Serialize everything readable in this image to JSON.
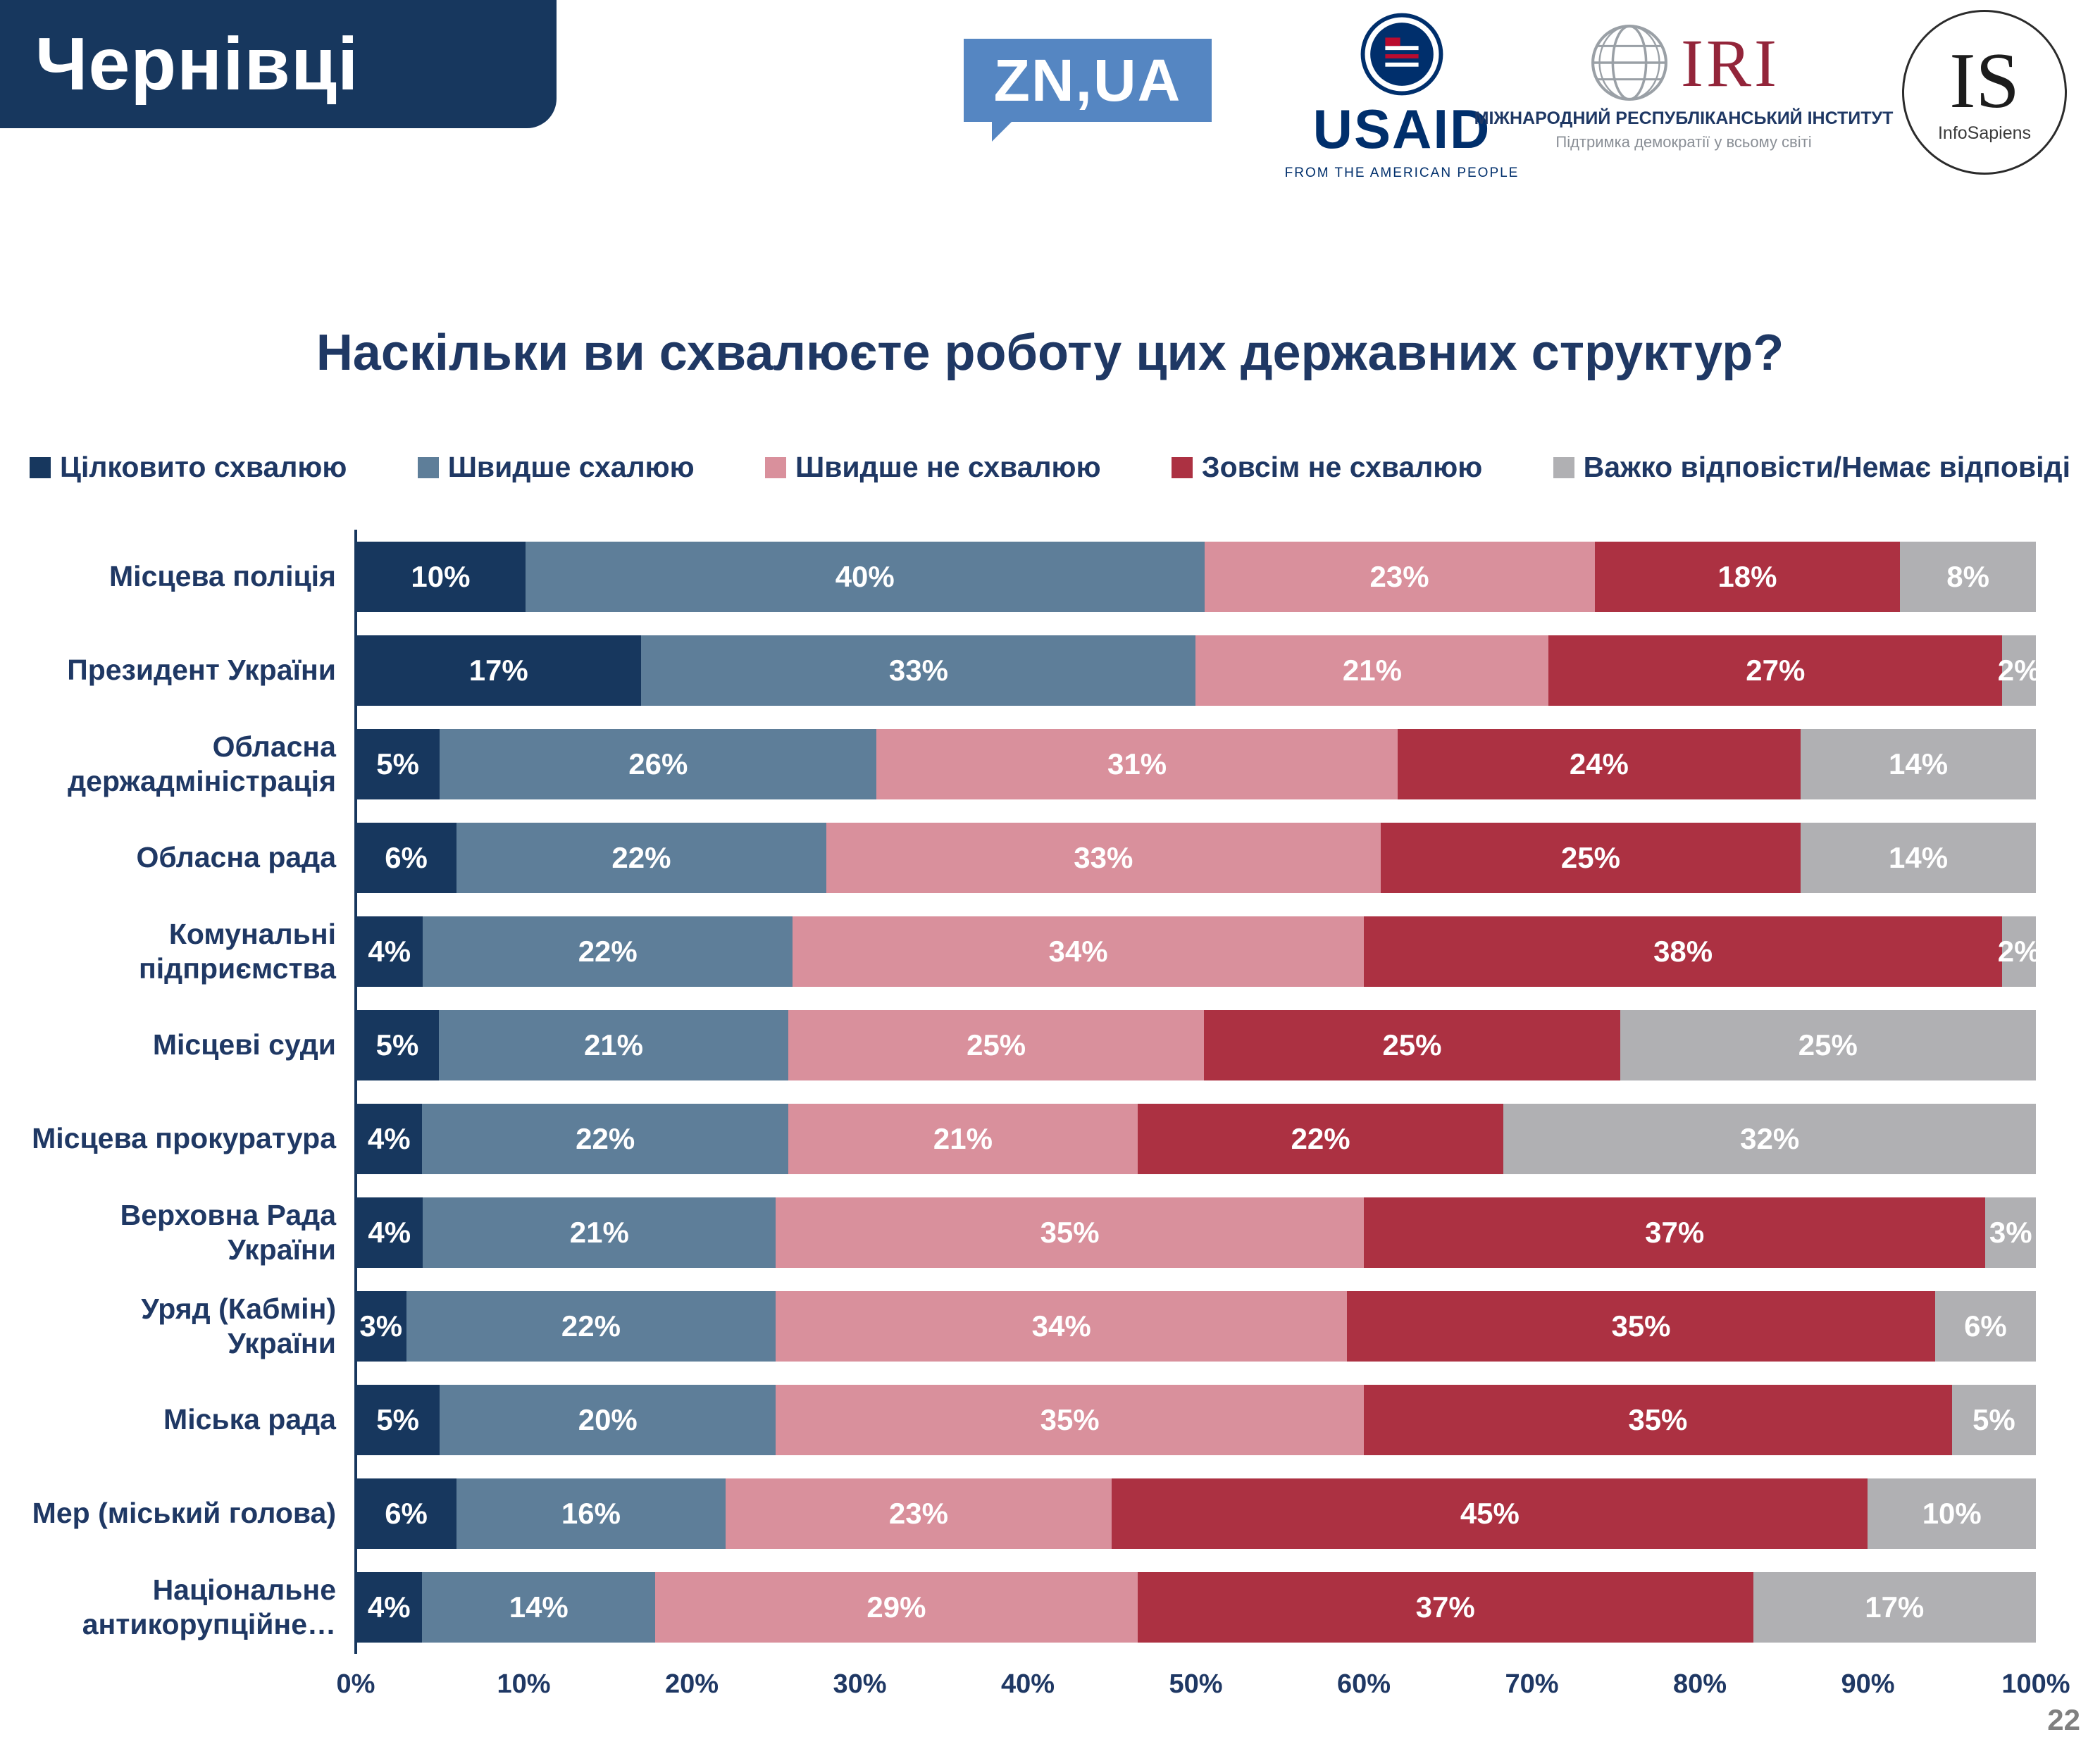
{
  "slide": {
    "city": "Чернівці",
    "page_number": "22"
  },
  "logos": {
    "znua": {
      "text": "ZN,UA"
    },
    "usaid": {
      "name": "USAID",
      "tagline": "FROM THE AMERICAN PEOPLE"
    },
    "iri": {
      "abbr": "IRI",
      "line1": "МІЖНАРОДНИЙ РЕСПУБЛІКАНСЬКИЙ ІНСТИТУТ",
      "line2": "Підтримка демократії у всьому світі"
    },
    "infosapiens": {
      "abbr": "IS",
      "name": "InfoSapiens"
    }
  },
  "chart_data": {
    "type": "bar",
    "stacked": true,
    "orientation": "horizontal",
    "title": "Наскільки ви схвалюєте роботу цих державних структур?",
    "xlabel": "",
    "ylabel": "",
    "xlim": [
      0,
      100
    ],
    "x_ticks": [
      "0%",
      "10%",
      "20%",
      "30%",
      "40%",
      "50%",
      "60%",
      "70%",
      "80%",
      "90%",
      "100%"
    ],
    "legend_position": "top",
    "grid": false,
    "categories": [
      "Місцева поліція",
      "Президент України",
      "Обласна держадміністрація",
      "Обласна рада",
      "Комунальні підприємства",
      "Місцеві суди",
      "Місцева прокуратура",
      "Верховна Рада України",
      "Уряд (Кабмін) України",
      "Міська рада",
      "Мер (міський голова)",
      "Національне антикорупційне…"
    ],
    "series": [
      {
        "name": "Цілковито схвалюю",
        "color": "#17375E",
        "values": [
          10,
          17,
          5,
          6,
          4,
          5,
          4,
          4,
          3,
          5,
          6,
          4
        ]
      },
      {
        "name": "Швидше схалюю",
        "color": "#5E7E99",
        "values": [
          40,
          33,
          26,
          22,
          22,
          21,
          22,
          21,
          22,
          20,
          16,
          14
        ]
      },
      {
        "name": "Швидше не схвалюю",
        "color": "#D9909C",
        "values": [
          23,
          21,
          31,
          33,
          34,
          25,
          21,
          35,
          34,
          35,
          23,
          29
        ]
      },
      {
        "name": "Зовсім не схвалюю",
        "color": "#AC3142",
        "values": [
          18,
          27,
          24,
          25,
          38,
          25,
          22,
          37,
          35,
          35,
          45,
          37
        ]
      },
      {
        "name": "Важко відповісти/Немає відповіді",
        "color": "#B0B0B3",
        "values": [
          8,
          2,
          14,
          14,
          2,
          25,
          32,
          3,
          6,
          5,
          10,
          17
        ]
      }
    ]
  }
}
